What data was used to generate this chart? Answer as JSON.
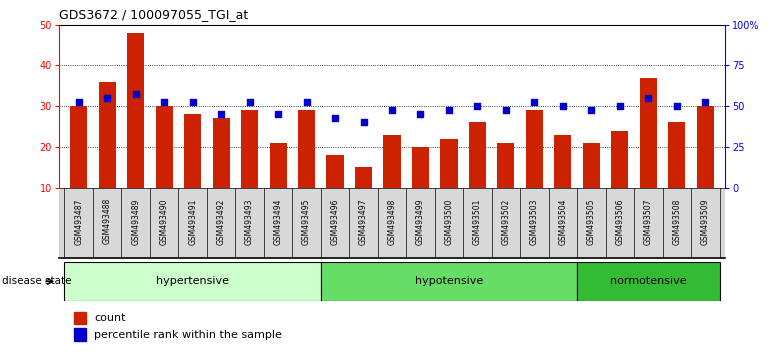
{
  "title": "GDS3672 / 100097055_TGI_at",
  "samples": [
    "GSM493487",
    "GSM493488",
    "GSM493489",
    "GSM493490",
    "GSM493491",
    "GSM493492",
    "GSM493493",
    "GSM493494",
    "GSM493495",
    "GSM493496",
    "GSM493497",
    "GSM493498",
    "GSM493499",
    "GSM493500",
    "GSM493501",
    "GSM493502",
    "GSM493503",
    "GSM493504",
    "GSM493505",
    "GSM493506",
    "GSM493507",
    "GSM493508",
    "GSM493509"
  ],
  "counts": [
    30,
    36,
    48,
    30,
    28,
    27,
    29,
    21,
    29,
    18,
    15,
    23,
    20,
    22,
    26,
    21,
    29,
    23,
    21,
    24,
    37,
    26,
    30
  ],
  "percentile_ranks_left_scale": [
    31,
    32,
    33,
    31,
    31,
    28,
    31,
    28,
    31,
    27,
    26,
    29,
    28,
    29,
    30,
    29,
    31,
    30,
    29,
    30,
    32,
    30,
    31
  ],
  "groups": [
    {
      "name": "hypertensive",
      "start": 0,
      "end": 9,
      "color": "#ccffcc"
    },
    {
      "name": "hypotensive",
      "start": 9,
      "end": 18,
      "color": "#66dd66"
    },
    {
      "name": "normotensive",
      "start": 18,
      "end": 23,
      "color": "#33bb33"
    }
  ],
  "bar_color": "#CC2200",
  "dot_color": "#0000CC",
  "ylim_left": [
    10,
    50
  ],
  "ylim_right": [
    0,
    100
  ],
  "yticks_left": [
    10,
    20,
    30,
    40,
    50
  ],
  "yticks_right": [
    0,
    25,
    50,
    75,
    100
  ],
  "ytick_labels_right": [
    "0",
    "25",
    "50",
    "75",
    "100%"
  ],
  "grid_ticks": [
    20,
    30,
    40
  ],
  "background_color": "#ffffff",
  "xtick_bg_color": "#d8d8d8",
  "disease_state_label": "disease state"
}
